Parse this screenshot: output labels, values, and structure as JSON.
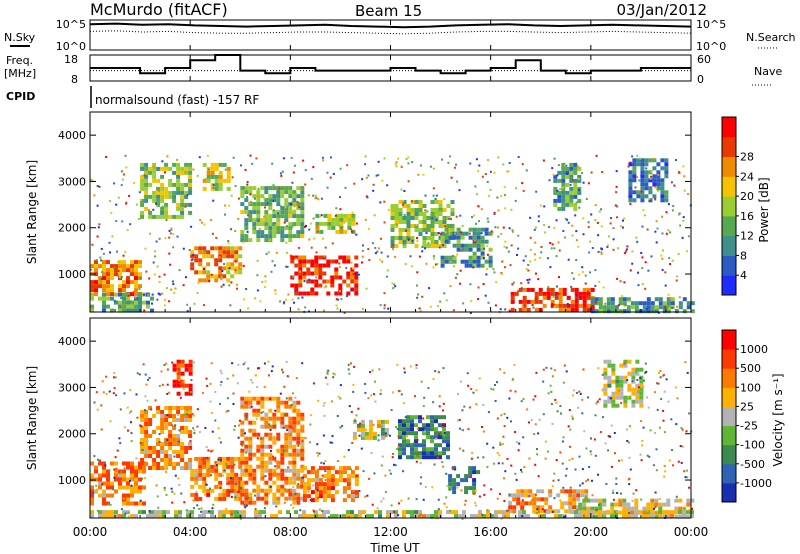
{
  "header": {
    "station": "McMurdo (fitACF)",
    "beam": "Beam 15",
    "date": "03/Jan/2012"
  },
  "labels": {
    "nsky": "N.Sky",
    "nsearch": "N.Search",
    "freq_line1": "Freq.",
    "freq_line2": "[MHz]",
    "nave": "Nave",
    "cpid": "CPID",
    "cpid_value": "normalsound (fast) -157 RF",
    "nsky_ticks": [
      "10^5",
      "10^0"
    ],
    "nsearch_ticks": [
      "10^5",
      "10^0"
    ],
    "freq_ticks": [
      "18",
      "8"
    ],
    "nave_ticks": [
      "60",
      "0"
    ]
  },
  "chart_data": [
    {
      "type": "line",
      "name": "noise",
      "series": [
        {
          "name": "N.Sky",
          "style": "solid",
          "values": [
            4.3,
            4.4,
            4.2,
            4.3,
            4.1,
            4.0,
            3.9,
            4.0,
            4.1,
            4.2,
            4.0,
            3.9,
            3.8,
            3.9,
            4.1,
            4.2,
            4.3,
            4.1,
            4.0,
            4.1,
            4.2,
            4.1,
            4.0,
            3.9
          ]
        },
        {
          "name": "N.Search",
          "style": "dotted",
          "values": [
            3.1,
            3.2,
            3.0,
            3.1,
            2.9,
            2.8,
            2.8,
            2.9,
            3.0,
            3.0,
            2.9,
            2.8,
            2.7,
            2.8,
            3.0,
            3.1,
            3.1,
            3.0,
            2.9,
            3.0,
            3.1,
            3.0,
            2.9,
            2.8
          ]
        }
      ],
      "ylim": [
        0,
        5
      ]
    },
    {
      "type": "line",
      "name": "freq-nave",
      "series": [
        {
          "name": "Freq.",
          "style": "solid",
          "values": [
            13,
            13,
            11,
            13,
            16,
            18,
            12,
            11,
            13,
            12,
            12,
            12,
            13,
            12,
            11,
            12,
            13,
            16,
            12,
            11,
            12,
            12,
            13,
            13
          ]
        },
        {
          "name": "Nave",
          "style": "dotted",
          "values": [
            20,
            20,
            20,
            20,
            20,
            20,
            20,
            20,
            20,
            20,
            20,
            20,
            20,
            20,
            20,
            20,
            20,
            20,
            20,
            20,
            20,
            20,
            20,
            20
          ]
        }
      ],
      "ylim": [
        8,
        18
      ]
    },
    {
      "type": "heatmap",
      "name": "power",
      "xlabel": "",
      "ylabel": "Slant Range [km]",
      "xlim": [
        0,
        24
      ],
      "ylim": [
        180,
        4500
      ],
      "yticks": [
        "1000",
        "2000",
        "3000",
        "4000"
      ],
      "colorbar": {
        "label": "Power [dB]",
        "ticks": [
          "4",
          "8",
          "12",
          "16",
          "20",
          "24",
          "28"
        ],
        "colors": [
          "#1f2cff",
          "#2b5cc6",
          "#3f8f8a",
          "#56a94f",
          "#9acd32",
          "#f5c400",
          "#f28a00",
          "#e83a00",
          "#ff0000"
        ]
      },
      "regions": [
        {
          "t0": 0.0,
          "t1": 2.0,
          "r0": 600,
          "r1": 1300,
          "v": 0.75
        },
        {
          "t0": 0.0,
          "t1": 2.5,
          "r0": 200,
          "r1": 600,
          "v": 0.35
        },
        {
          "t0": 2.0,
          "t1": 4.0,
          "r0": 2200,
          "r1": 3400,
          "v": 0.45
        },
        {
          "t0": 4.0,
          "t1": 6.0,
          "r0": 900,
          "r1": 1600,
          "v": 0.7
        },
        {
          "t0": 4.5,
          "t1": 5.5,
          "r0": 2800,
          "r1": 3400,
          "v": 0.55
        },
        {
          "t0": 6.0,
          "t1": 8.5,
          "r0": 1700,
          "r1": 2900,
          "v": 0.4
        },
        {
          "t0": 8.0,
          "t1": 10.7,
          "r0": 600,
          "r1": 1400,
          "v": 0.9
        },
        {
          "t0": 9.0,
          "t1": 10.5,
          "r0": 1900,
          "r1": 2300,
          "v": 0.5
        },
        {
          "t0": 12.0,
          "t1": 14.5,
          "r0": 1600,
          "r1": 2600,
          "v": 0.45
        },
        {
          "t0": 14.0,
          "t1": 16.0,
          "r0": 1200,
          "r1": 2000,
          "v": 0.3
        },
        {
          "t0": 16.8,
          "t1": 20.0,
          "r0": 200,
          "r1": 700,
          "v": 0.85
        },
        {
          "t0": 20.0,
          "t1": 24.0,
          "r0": 200,
          "r1": 500,
          "v": 0.3
        },
        {
          "t0": 18.5,
          "t1": 19.5,
          "r0": 2400,
          "r1": 3400,
          "v": 0.35
        },
        {
          "t0": 21.5,
          "t1": 23.0,
          "r0": 2600,
          "r1": 3500,
          "v": 0.25
        }
      ]
    },
    {
      "type": "heatmap",
      "name": "velocity",
      "xlabel": "Time UT",
      "ylabel": "Slant Range [km]",
      "xlim": [
        0,
        24
      ],
      "ylim": [
        180,
        4500
      ],
      "xticks": [
        "00:00",
        "04:00",
        "08:00",
        "12:00",
        "16:00",
        "20:00",
        "00:00"
      ],
      "yticks": [
        "1000",
        "2000",
        "3000",
        "4000"
      ],
      "colorbar": {
        "label": "Velocity [m s⁻¹]",
        "ticks": [
          "1000",
          "500",
          "100",
          "25",
          "-25",
          "-100",
          "-500",
          "-1000"
        ],
        "colors": [
          "#1a2eb0",
          "#2f64b5",
          "#3d8a50",
          "#5fb536",
          "#b3b3b3",
          "#ffb000",
          "#ff7a00",
          "#ff3a00",
          "#ff0000"
        ]
      },
      "regions": [
        {
          "t0": 0.0,
          "t1": 2.2,
          "r0": 500,
          "r1": 1400,
          "v": 0.72
        },
        {
          "t0": 2.0,
          "t1": 4.0,
          "r0": 1300,
          "r1": 2600,
          "v": 0.7
        },
        {
          "t0": 3.3,
          "t1": 4.0,
          "r0": 2900,
          "r1": 3600,
          "v": 0.9
        },
        {
          "t0": 4.0,
          "t1": 6.0,
          "r0": 600,
          "r1": 1500,
          "v": 0.72
        },
        {
          "t0": 6.0,
          "t1": 8.5,
          "r0": 500,
          "r1": 2800,
          "v": 0.7
        },
        {
          "t0": 8.5,
          "t1": 10.7,
          "r0": 600,
          "r1": 1300,
          "v": 0.72
        },
        {
          "t0": 10.5,
          "t1": 11.8,
          "r0": 1900,
          "r1": 2300,
          "v": 0.5
        },
        {
          "t0": 12.3,
          "t1": 14.3,
          "r0": 1500,
          "r1": 2400,
          "v": 0.22
        },
        {
          "t0": 14.3,
          "t1": 15.5,
          "r0": 700,
          "r1": 1300,
          "v": 0.2
        },
        {
          "t0": 16.7,
          "t1": 19.8,
          "r0": 300,
          "r1": 800,
          "v": 0.65
        },
        {
          "t0": 19.5,
          "t1": 24.0,
          "r0": 200,
          "r1": 600,
          "v": 0.55
        },
        {
          "t0": 20.5,
          "t1": 22.0,
          "r0": 2600,
          "r1": 3600,
          "v": 0.5
        },
        {
          "t0": 0.0,
          "t1": 24.0,
          "r0": 180,
          "r1": 350,
          "v": 0.5
        }
      ]
    }
  ]
}
